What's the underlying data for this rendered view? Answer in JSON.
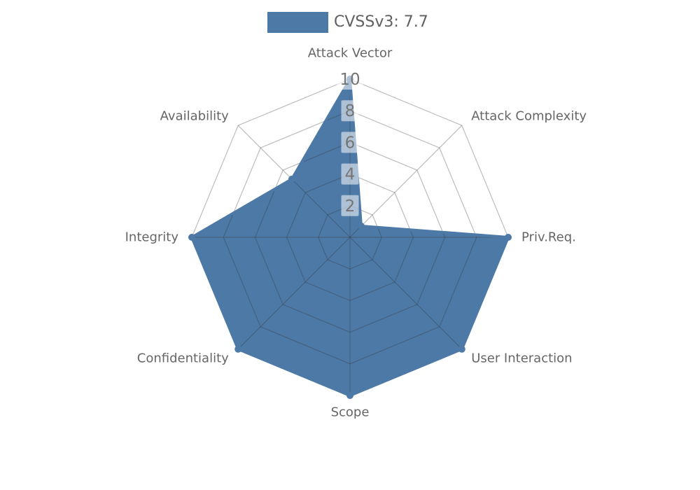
{
  "legend": {
    "label": "CVSSv3: 7.7",
    "swatch_color": "#4d79a7"
  },
  "chart_data": {
    "type": "radar",
    "title": "",
    "categories": [
      "Attack Vector",
      "Attack Complexity",
      "Priv.Req.",
      "User Interaction",
      "Scope",
      "Confidentiality",
      "Integrity",
      "Availability"
    ],
    "series": [
      {
        "name": "CVSSv3: 7.7",
        "values": [
          10,
          1,
          10,
          10,
          10,
          10,
          10,
          5.2
        ]
      }
    ],
    "rlim": [
      0,
      10
    ],
    "ring_interval": 2,
    "tick_values": [
      2,
      4,
      6,
      8,
      10
    ],
    "tick_labels": [
      "2",
      "4",
      "6",
      "8",
      "10"
    ],
    "tick_axis_angle_deg": 90,
    "start_angle_deg": 90,
    "direction": "clockwise",
    "grid": true,
    "grid_shape": "polygon",
    "legend_position": "top-center",
    "marker": "circle",
    "colors": {
      "series_fill": "#4d79a7",
      "series_line": "#4d79a7",
      "marker": "#4d79a7",
      "grid_line_rgba": "rgba(50,50,50,0.32)",
      "tick_text": "#757575",
      "tick_box_bg": "rgba(255,255,255,0.55)",
      "label_text": "#666666",
      "legend_text": "#606060",
      "background": "#ffffff"
    }
  }
}
